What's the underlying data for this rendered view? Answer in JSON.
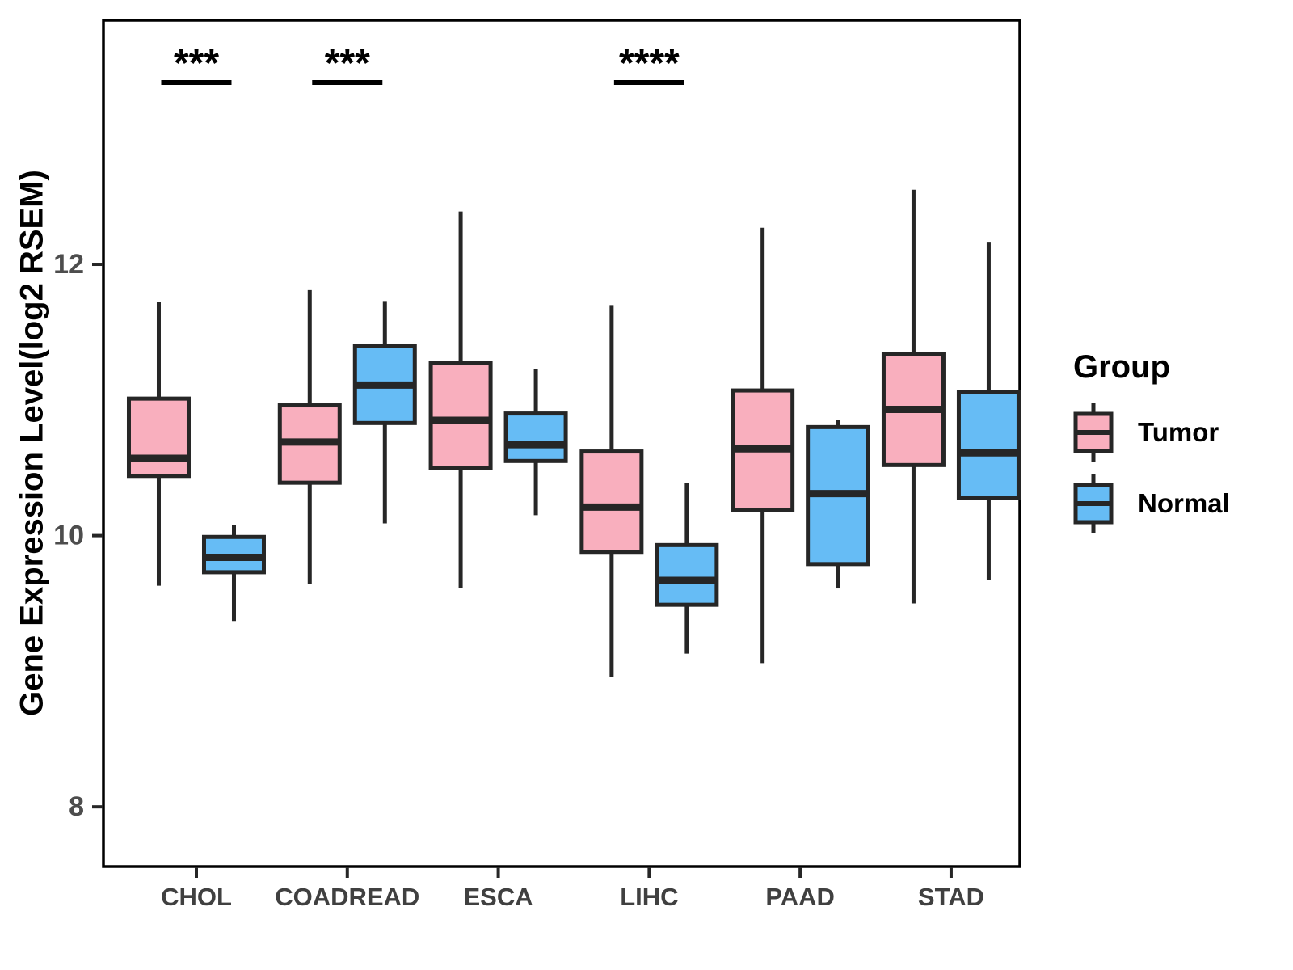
{
  "chart_data": {
    "type": "boxplot",
    "title": "",
    "xlabel": "",
    "ylabel": "Gene Expression Level(log2 RSEM)",
    "categories": [
      "CHOL",
      "COADREAD",
      "ESCA",
      "LIHC",
      "PAAD",
      "STAD"
    ],
    "yticks": [
      8,
      10,
      12
    ],
    "ylim": [
      7.56,
      13.8
    ],
    "grid": false,
    "legend": {
      "title": "Group",
      "position": "right",
      "entries": [
        {
          "label": "Tumor",
          "color": "#F9AFBE"
        },
        {
          "label": "Normal",
          "color": "#66BCF5"
        }
      ]
    },
    "series": [
      {
        "name": "Tumor",
        "color": "#F9AFBE",
        "boxes": [
          {
            "category": "CHOL",
            "low": 9.63,
            "q1": 10.44,
            "median": 10.57,
            "q3": 11.01,
            "high": 11.72
          },
          {
            "category": "COADREAD",
            "low": 9.64,
            "q1": 10.39,
            "median": 10.69,
            "q3": 10.96,
            "high": 11.81
          },
          {
            "category": "ESCA",
            "low": 9.61,
            "q1": 10.5,
            "median": 10.85,
            "q3": 11.27,
            "high": 12.39
          },
          {
            "category": "LIHC",
            "low": 8.96,
            "q1": 9.88,
            "median": 10.21,
            "q3": 10.62,
            "high": 11.7
          },
          {
            "category": "PAAD",
            "low": 9.06,
            "q1": 10.19,
            "median": 10.64,
            "q3": 11.07,
            "high": 12.27
          },
          {
            "category": "STAD",
            "low": 9.5,
            "q1": 10.52,
            "median": 10.93,
            "q3": 11.34,
            "high": 12.55
          }
        ]
      },
      {
        "name": "Normal",
        "color": "#66BCF5",
        "boxes": [
          {
            "category": "CHOL",
            "low": 9.37,
            "q1": 9.73,
            "median": 9.84,
            "q3": 9.99,
            "high": 10.08
          },
          {
            "category": "COADREAD",
            "low": 10.09,
            "q1": 10.83,
            "median": 11.11,
            "q3": 11.4,
            "high": 11.73
          },
          {
            "category": "ESCA",
            "low": 10.15,
            "q1": 10.55,
            "median": 10.67,
            "q3": 10.9,
            "high": 11.23
          },
          {
            "category": "LIHC",
            "low": 9.13,
            "q1": 9.49,
            "median": 9.67,
            "q3": 9.93,
            "high": 10.39
          },
          {
            "category": "PAAD",
            "low": 9.61,
            "q1": 9.79,
            "median": 10.31,
            "q3": 10.8,
            "high": 10.85
          },
          {
            "category": "STAD",
            "low": 9.67,
            "q1": 10.28,
            "median": 10.61,
            "q3": 11.06,
            "high": 12.16
          }
        ]
      }
    ],
    "significance": [
      {
        "category": "CHOL",
        "label": "***"
      },
      {
        "category": "COADREAD",
        "label": "***"
      },
      {
        "category": "LIHC",
        "label": "****"
      }
    ],
    "colors": {
      "box_line": "#262626",
      "panel_border": "#000000",
      "axis_tick_text": "#4D4D4D",
      "category_text": "#404040",
      "significance_text": "#000000"
    }
  }
}
